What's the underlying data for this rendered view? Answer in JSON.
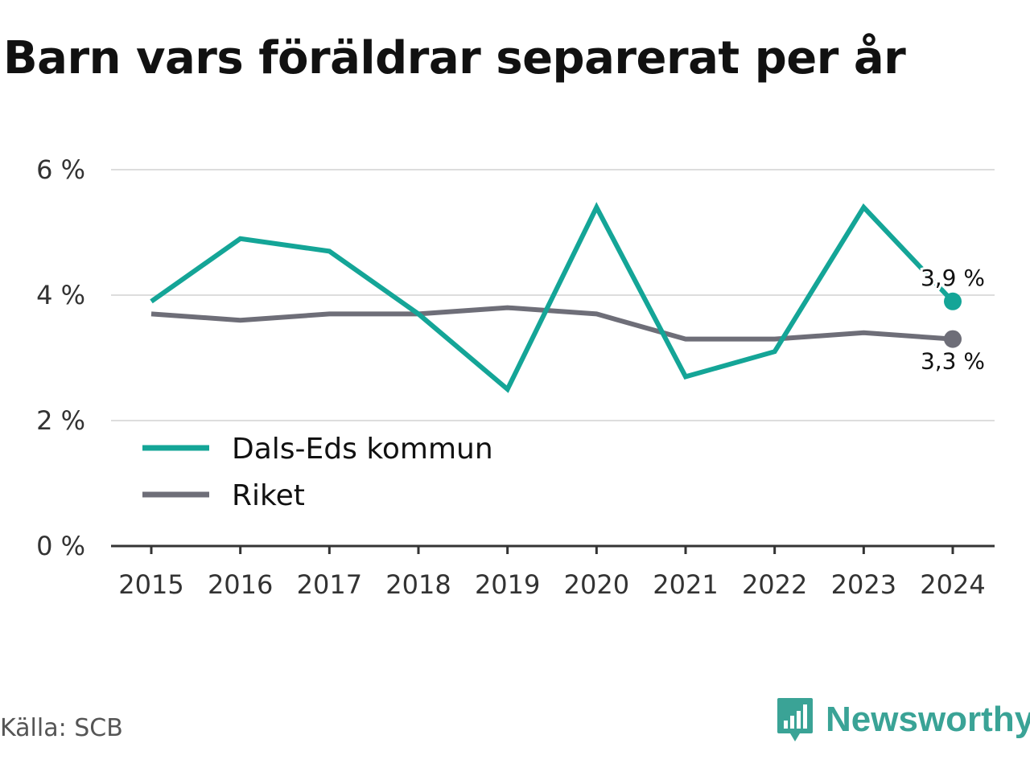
{
  "title": "Barn vars föräldrar separerat per år",
  "source": "Källa: SCB",
  "brand": {
    "name": "Newsworthy",
    "icon": "newsworthy-logo-icon",
    "color": "#3aa396"
  },
  "colors": {
    "grid": "#dddddd",
    "axis": "#333333",
    "text": "#333333"
  },
  "chart_data": {
    "type": "line",
    "x": [
      "2015",
      "2016",
      "2017",
      "2018",
      "2019",
      "2020",
      "2021",
      "2022",
      "2023",
      "2024"
    ],
    "ylim": [
      0,
      6
    ],
    "yticks": [
      {
        "value": 0,
        "label": "0 %"
      },
      {
        "value": 2,
        "label": "2 %"
      },
      {
        "value": 4,
        "label": "4 %"
      },
      {
        "value": 6,
        "label": "6 %"
      }
    ],
    "grid": true,
    "legend": "bottom-left",
    "series": [
      {
        "name": "Dals-Eds kommun",
        "color": "#14a597",
        "values": [
          3.9,
          4.9,
          4.7,
          3.7,
          2.5,
          5.4,
          2.7,
          3.1,
          5.4,
          3.9
        ],
        "end_label": "3,9 %"
      },
      {
        "name": "Riket",
        "color": "#6e6e78",
        "values": [
          3.7,
          3.6,
          3.7,
          3.7,
          3.8,
          3.7,
          3.3,
          3.3,
          3.4,
          3.3
        ],
        "end_label": "3,3 %"
      }
    ]
  }
}
